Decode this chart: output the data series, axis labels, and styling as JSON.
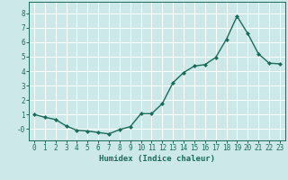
{
  "x": [
    0,
    1,
    2,
    3,
    4,
    5,
    6,
    7,
    8,
    9,
    10,
    11,
    12,
    13,
    14,
    15,
    16,
    17,
    18,
    19,
    20,
    21,
    22,
    23
  ],
  "y": [
    1.0,
    0.8,
    0.65,
    0.2,
    -0.1,
    -0.15,
    -0.25,
    -0.35,
    -0.05,
    0.15,
    1.05,
    1.05,
    1.75,
    3.2,
    3.9,
    4.35,
    4.45,
    4.95,
    6.2,
    7.8,
    6.6,
    5.2,
    4.55,
    4.5
  ],
  "line_color": "#1a6b5a",
  "marker": "D",
  "markersize": 2.0,
  "linewidth": 1.0,
  "bg_color": "#cce8e8",
  "grid_color": "#ffffff",
  "xlabel": "Humidex (Indice chaleur)",
  "xlabel_fontsize": 6.5,
  "xlabel_color": "#1a6b5a",
  "tick_color": "#1a6b5a",
  "tick_fontsize": 5.5,
  "ylim": [
    -0.8,
    8.8
  ],
  "xlim": [
    -0.5,
    23.5
  ],
  "yticks": [
    0,
    1,
    2,
    3,
    4,
    5,
    6,
    7,
    8
  ],
  "ytick_labels": [
    "-0",
    "1",
    "2",
    "3",
    "4",
    "5",
    "6",
    "7",
    "8"
  ],
  "xticks": [
    0,
    1,
    2,
    3,
    4,
    5,
    6,
    7,
    8,
    9,
    10,
    11,
    12,
    13,
    14,
    15,
    16,
    17,
    18,
    19,
    20,
    21,
    22,
    23
  ]
}
